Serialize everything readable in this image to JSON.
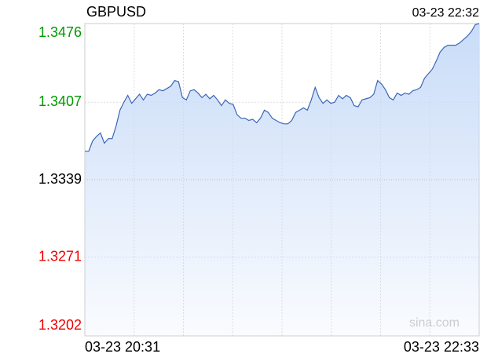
{
  "chart_data": {
    "type": "area-line",
    "title": "GBPUSD",
    "timestamp": "03-23 22:32",
    "watermark": "sina.com",
    "categories": [
      "03-23 20:31",
      null,
      null,
      null,
      null,
      null,
      null,
      null,
      null,
      null,
      null,
      null,
      null,
      null,
      null,
      null,
      null,
      null,
      null,
      null,
      null,
      null,
      null,
      null,
      null,
      null,
      null,
      null,
      null,
      null,
      null,
      null,
      null,
      null,
      null,
      null,
      null,
      null,
      null,
      null,
      null,
      null,
      null,
      null,
      null,
      null,
      null,
      null,
      null,
      null,
      null,
      null,
      null,
      null,
      null,
      null,
      null,
      null,
      null,
      null,
      null,
      null,
      null,
      null,
      null,
      null,
      null,
      null,
      null,
      null,
      null,
      null,
      null,
      null,
      null,
      null,
      null,
      null,
      null,
      null,
      null,
      null,
      null,
      null,
      null,
      null,
      null,
      null,
      null,
      null,
      null,
      null,
      null,
      null,
      null,
      null,
      null,
      null,
      null,
      null,
      null,
      "03-23 22:33"
    ],
    "values": [
      1.3364,
      1.3364,
      1.3373,
      1.3377,
      1.338,
      1.3371,
      1.3375,
      1.3375,
      1.3386,
      1.34,
      1.3407,
      1.3413,
      1.3406,
      1.341,
      1.3414,
      1.3409,
      1.3414,
      1.3413,
      1.3415,
      1.3418,
      1.3417,
      1.3419,
      1.3421,
      1.3426,
      1.3425,
      1.3411,
      1.3409,
      1.3417,
      1.3418,
      1.3415,
      1.3411,
      1.3414,
      1.341,
      1.3413,
      1.3409,
      1.3404,
      1.3409,
      1.3406,
      1.3405,
      1.3396,
      1.3393,
      1.3393,
      1.3391,
      1.3392,
      1.3389,
      1.3393,
      1.34,
      1.3398,
      1.3393,
      1.3391,
      1.3389,
      1.3388,
      1.3388,
      1.3391,
      1.3398,
      1.34,
      1.3402,
      1.34,
      1.3409,
      1.342,
      1.3411,
      1.3406,
      1.3409,
      1.3406,
      1.3407,
      1.3413,
      1.341,
      1.3413,
      1.3411,
      1.3404,
      1.3403,
      1.3409,
      1.341,
      1.3411,
      1.3414,
      1.3426,
      1.3423,
      1.3418,
      1.3411,
      1.3409,
      1.3415,
      1.3413,
      1.3415,
      1.3414,
      1.3417,
      1.3418,
      1.342,
      1.3428,
      1.3432,
      1.3436,
      1.3443,
      1.3451,
      1.3455,
      1.3457,
      1.3457,
      1.3457,
      1.3459,
      1.3462,
      1.3465,
      1.3469,
      1.3475,
      1.3476
    ],
    "color": "#3a66b8",
    "fill_color": "#c9dcf8",
    "ylim": [
      1.3202,
      1.3476
    ],
    "yticks": [
      1.3476,
      1.3407,
      1.3339,
      1.3271,
      1.3202
    ],
    "ytick_colors": [
      "#009900",
      "#009900",
      "#000000",
      "#ee0000",
      "#ee0000"
    ],
    "grid": true
  }
}
